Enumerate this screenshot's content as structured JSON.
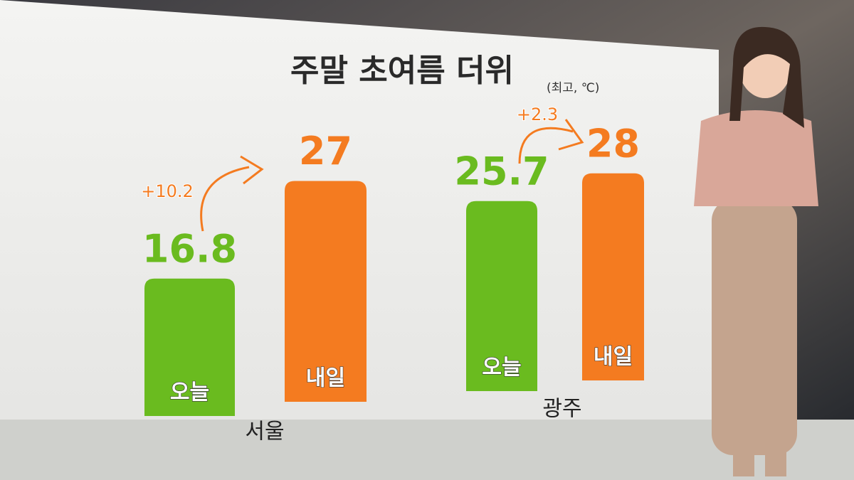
{
  "chart_data": {
    "type": "bar",
    "title": "주말 초여름 더위",
    "subtitle": "(최고, ℃)",
    "categories": [
      "서울",
      "광주"
    ],
    "series": [
      {
        "name": "오늘",
        "color": "#6abb1f",
        "values": [
          16.8,
          25.7
        ]
      },
      {
        "name": "내일",
        "color": "#f47b20",
        "values": [
          27,
          28
        ]
      }
    ],
    "annotations": [
      "+10.2",
      "+2.3"
    ]
  }
}
